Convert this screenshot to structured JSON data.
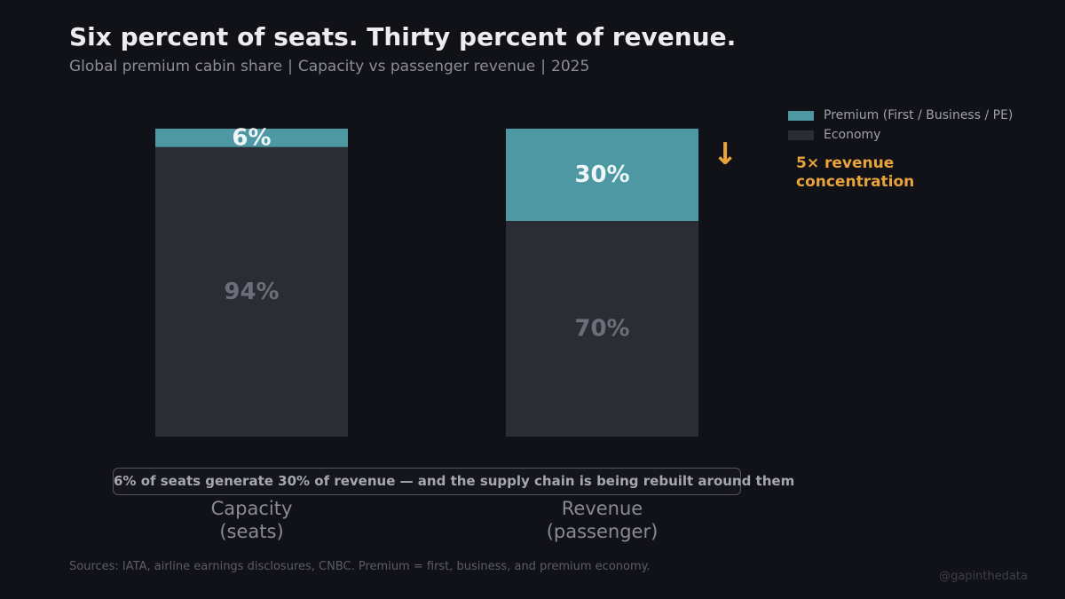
{
  "title": "Six percent of seats. Thirty percent of revenue.",
  "subtitle": {
    "parts": [
      "Global premium cabin share",
      "Capacity vs passenger revenue",
      "2025"
    ],
    "separator": "|"
  },
  "legend": {
    "premium": "Premium (First / Business / PE)",
    "economy": "Economy"
  },
  "annotation": {
    "arrow": "↓",
    "line1": "5× revenue",
    "line2": "concentration"
  },
  "callout": "6% of seats generate 30% of revenue — and the supply chain is being rebuilt around them",
  "source": "Sources: IATA, airline earnings disclosures, CNBC. Premium = first, business, and premium economy.",
  "handle": "@gapinthedata",
  "colors": {
    "background": "#111217",
    "premium": "#4e98a4",
    "economy": "#2c2c35",
    "accent": "#e8a33a"
  },
  "chart_data": {
    "type": "bar",
    "stacked": true,
    "categories": [
      [
        "Capacity",
        "(seats)"
      ],
      [
        "Revenue",
        "(passenger)"
      ]
    ],
    "series": [
      {
        "name": "Economy",
        "values": [
          94,
          70
        ],
        "labels": [
          "94%",
          "70%"
        ]
      },
      {
        "name": "Premium (First / Business / PE)",
        "values": [
          6,
          30
        ],
        "labels": [
          "6%",
          "30%"
        ]
      }
    ],
    "ylim": [
      0,
      100
    ],
    "unit": "%"
  }
}
